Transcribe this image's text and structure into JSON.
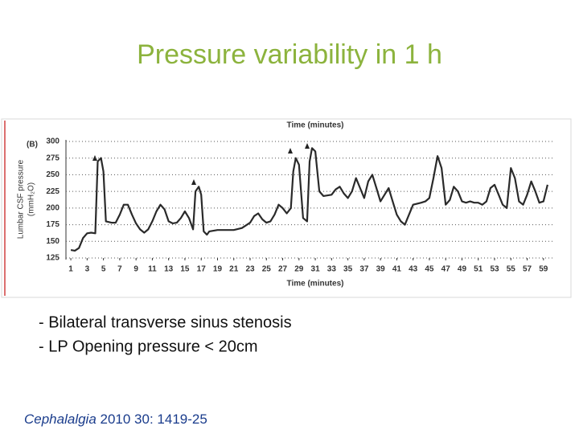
{
  "slide": {
    "title": "Pressure variability in 1 h",
    "bullets": [
      "- Bilateral transverse sinus stenosis",
      "- LP Opening pressure < 20cm"
    ],
    "citation": {
      "journal": "Cephalalgia",
      "details": " 2010 30: 1419-25"
    }
  },
  "chart_data": {
    "type": "line",
    "panel_label": "(B)",
    "xlabel": "Time (minutes)",
    "ylabel": [
      "Lumbar CSF pressure",
      "(mmH₂O)"
    ],
    "color": "#2a2a2a",
    "grid": true,
    "xlim": [
      0.4,
      60.4
    ],
    "ylim": [
      125,
      300
    ],
    "xticks": [
      1,
      3,
      5,
      7,
      9,
      11,
      13,
      15,
      17,
      19,
      21,
      23,
      25,
      27,
      29,
      31,
      33,
      35,
      37,
      39,
      41,
      43,
      45,
      47,
      49,
      51,
      53,
      55,
      57,
      59
    ],
    "yticks": [
      125,
      150,
      175,
      200,
      225,
      250,
      275,
      300
    ],
    "x": [
      1,
      1.5,
      2,
      2.5,
      3,
      3.5,
      4,
      4.3,
      4.7,
      5,
      5.3,
      6,
      6.5,
      7,
      7.5,
      8,
      8.5,
      9,
      9.5,
      10,
      10.5,
      11,
      11.5,
      12,
      12.5,
      13,
      13.5,
      14,
      14.5,
      15,
      15.5,
      16,
      16.3,
      16.7,
      17,
      17.3,
      17.7,
      18,
      19,
      20,
      21,
      22,
      23,
      23.5,
      24,
      24.5,
      25,
      25.5,
      26,
      26.5,
      27,
      27.5,
      28,
      28.3,
      28.6,
      29,
      29.5,
      30,
      30.3,
      30.6,
      31,
      31.5,
      32,
      33,
      33.5,
      34,
      34.5,
      35,
      35.5,
      36,
      36.5,
      37,
      37.5,
      38,
      38.5,
      39,
      39.5,
      40,
      40.5,
      41,
      41.5,
      42,
      42.5,
      43,
      44,
      44.5,
      45,
      45.5,
      46,
      46.5,
      47,
      47.5,
      48,
      48.5,
      49,
      49.5,
      50,
      50.5,
      51,
      51.5,
      52,
      52.5,
      53,
      53.5,
      54,
      54.5,
      55,
      55.5,
      56,
      56.5,
      57,
      57.5,
      58,
      58.5,
      59,
      59.5
    ],
    "values": [
      137,
      136,
      140,
      155,
      162,
      163,
      162,
      270,
      275,
      255,
      180,
      178,
      178,
      190,
      205,
      205,
      190,
      177,
      168,
      163,
      168,
      180,
      195,
      205,
      198,
      180,
      177,
      178,
      185,
      195,
      185,
      168,
      225,
      232,
      220,
      165,
      160,
      165,
      167,
      167,
      167,
      170,
      178,
      188,
      192,
      183,
      178,
      180,
      190,
      205,
      200,
      192,
      200,
      255,
      275,
      265,
      185,
      180,
      270,
      290,
      285,
      225,
      218,
      220,
      228,
      232,
      222,
      215,
      225,
      245,
      230,
      215,
      240,
      250,
      230,
      210,
      220,
      230,
      210,
      190,
      180,
      175,
      190,
      205,
      208,
      210,
      215,
      245,
      278,
      260,
      205,
      212,
      232,
      225,
      210,
      208,
      210,
      208,
      208,
      205,
      210,
      230,
      235,
      220,
      205,
      200,
      260,
      245,
      210,
      205,
      220,
      240,
      225,
      208,
      210,
      235
    ]
  }
}
